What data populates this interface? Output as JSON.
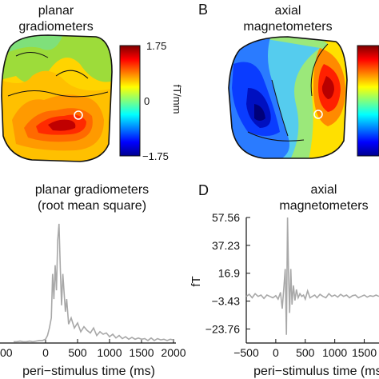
{
  "panels": {
    "A": {
      "title_line1": "planar",
      "title_line2": "gradiometers",
      "colorbar": {
        "max": "1.75",
        "mid": "0",
        "min": "−1.75",
        "unit": "fT/mm"
      }
    },
    "B": {
      "letter": "B",
      "title_line1": "axial",
      "title_line2": "magnetometers"
    },
    "C": {
      "title_line1": "planar gradiometers",
      "title_line2": "(root mean square)"
    },
    "D": {
      "letter": "D",
      "title_line1": "axial",
      "title_line2": "magnetometers"
    }
  },
  "chart_data": [
    {
      "type": "line",
      "panel": "C",
      "xlabel": "peri−stimulus time (ms)",
      "xticks": [
        "0",
        "500",
        "1000",
        "1500",
        "2000"
      ],
      "first_tick_partial": "00",
      "xlim": [
        -500,
        2000
      ],
      "ylim": [
        0,
        1
      ],
      "color": "#a8a8a8",
      "series": [
        {
          "x": [
            -500,
            -450,
            -400,
            -350,
            -300,
            -250,
            -200,
            -150,
            -100,
            -50,
            0,
            30,
            60,
            90,
            110,
            130,
            150,
            170,
            190,
            210,
            230,
            250,
            270,
            290,
            310,
            330,
            360,
            400,
            450,
            500,
            550,
            600,
            650,
            700,
            750,
            800,
            850,
            900,
            950,
            1000,
            1050,
            1100,
            1150,
            1200,
            1250,
            1300,
            1350,
            1400,
            1450,
            1500,
            1550,
            1600,
            1650,
            1700,
            1750,
            1800,
            1850,
            1900,
            1950,
            2000
          ],
          "values": [
            0.01,
            0.01,
            0.015,
            0.01,
            0.01,
            0.015,
            0.01,
            0.015,
            0.02,
            0.02,
            0.03,
            0.06,
            0.12,
            0.2,
            0.55,
            0.35,
            0.62,
            0.42,
            0.82,
            0.95,
            0.6,
            0.3,
            0.55,
            0.4,
            0.25,
            0.35,
            0.15,
            0.2,
            0.12,
            0.16,
            0.09,
            0.13,
            0.1,
            0.08,
            0.12,
            0.06,
            0.09,
            0.07,
            0.08,
            0.05,
            0.07,
            0.04,
            0.06,
            0.035,
            0.05,
            0.03,
            0.045,
            0.03,
            0.04,
            0.03,
            0.035,
            0.02,
            0.04,
            0.02,
            0.035,
            0.025,
            0.03,
            0.02,
            0.03,
            0.025
          ]
        }
      ]
    },
    {
      "type": "line",
      "panel": "D",
      "ylabel": "fT",
      "xlabel": "peri−stimulus time (ms)",
      "xticks": [
        "−500",
        "0",
        "500",
        "1000",
        "1500"
      ],
      "yticks": [
        "57.56",
        "37.23",
        "16.9",
        "−3.43",
        "−23.76"
      ],
      "ytick_values": [
        57.56,
        37.23,
        16.9,
        -3.43,
        -23.76
      ],
      "xlim": [
        -500,
        1750
      ],
      "ylim": [
        -34,
        57.56
      ],
      "color": "#a8a8a8",
      "series": [
        {
          "x": [
            -500,
            -450,
            -400,
            -350,
            -300,
            -250,
            -200,
            -150,
            -100,
            -50,
            0,
            40,
            80,
            110,
            140,
            160,
            180,
            200,
            215,
            235,
            255,
            275,
            300,
            325,
            350,
            380,
            410,
            440,
            470,
            500,
            540,
            580,
            620,
            660,
            700,
            750,
            800,
            850,
            900,
            950,
            1000,
            1050,
            1100,
            1150,
            1200,
            1250,
            1300,
            1350,
            1400,
            1450,
            1500,
            1550,
            1600,
            1650,
            1700,
            1750
          ],
          "values": [
            0,
            1.5,
            -1,
            2,
            0,
            1,
            -1.5,
            1,
            0,
            -1,
            0.5,
            -2,
            3,
            -9,
            8,
            20,
            -28,
            57.56,
            18,
            -12,
            20,
            -6,
            8,
            -3,
            5,
            -1,
            2,
            0,
            1,
            -2,
            4,
            -1,
            0,
            1,
            -1,
            1.5,
            0,
            -1,
            2,
            0,
            1,
            -0.5,
            1.5,
            0,
            1,
            -1,
            0.5,
            1,
            -1,
            0,
            1,
            -0.5,
            0.5,
            0,
            1,
            0
          ]
        }
      ]
    }
  ]
}
